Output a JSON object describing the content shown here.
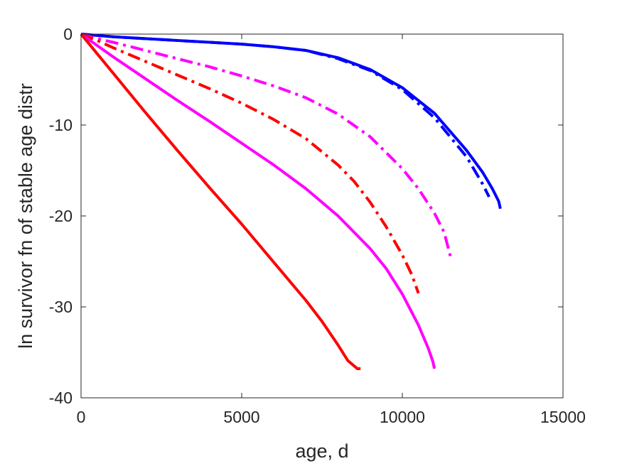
{
  "chart_data": {
    "type": "line",
    "title": "",
    "xlabel": "age, d",
    "ylabel": "ln survivor fn of stable age distr",
    "xlim": [
      0,
      15000
    ],
    "ylim": [
      -40,
      0
    ],
    "xticks": [
      0,
      5000,
      10000,
      15000
    ],
    "yticks": [
      0,
      -10,
      -20,
      -30,
      -40
    ],
    "xtick_labels": [
      "0",
      "5000",
      "10000",
      "15000"
    ],
    "ytick_labels": [
      "0",
      "-10",
      "-20",
      "-30",
      "-40"
    ],
    "grid": false,
    "legend": "none",
    "series": [
      {
        "color": "#0000ff",
        "style": "solid",
        "x": [
          0,
          1000,
          2000,
          3000,
          4000,
          5000,
          6000,
          7000,
          8000,
          9000,
          10000,
          11000,
          12000,
          12500,
          12800,
          13000,
          13050
        ],
        "y": [
          0,
          -0.3,
          -0.5,
          -0.7,
          -0.9,
          -1.1,
          -1.4,
          -1.8,
          -2.6,
          -3.9,
          -5.9,
          -8.7,
          -12.8,
          -15.2,
          -17.0,
          -18.4,
          -19.2
        ]
      },
      {
        "color": "#0000ff",
        "style": "dashdot",
        "x": [
          0,
          1000,
          2000,
          3000,
          4000,
          5000,
          6000,
          7000,
          8000,
          9000,
          10000,
          11000,
          12000,
          12500,
          12700
        ],
        "y": [
          0,
          -0.3,
          -0.5,
          -0.7,
          -0.9,
          -1.1,
          -1.4,
          -1.8,
          -2.7,
          -4.0,
          -6.1,
          -9.2,
          -13.5,
          -16.5,
          -17.9
        ]
      },
      {
        "color": "#ff00ff",
        "style": "dashdot",
        "x": [
          0,
          500,
          1000,
          2000,
          3000,
          4000,
          5000,
          6000,
          7000,
          8000,
          9000,
          10000,
          10500,
          11000,
          11300,
          11500
        ],
        "y": [
          0,
          -0.5,
          -0.9,
          -1.8,
          -2.7,
          -3.6,
          -4.6,
          -5.7,
          -7.0,
          -8.8,
          -11.3,
          -14.8,
          -17.0,
          -19.7,
          -21.8,
          -24.5
        ]
      },
      {
        "color": "#ff0000",
        "style": "dashdot",
        "x": [
          0,
          500,
          1000,
          2000,
          3000,
          4000,
          5000,
          6000,
          7000,
          8000,
          8500,
          9000,
          9500,
          10000,
          10300,
          10500
        ],
        "y": [
          0,
          -0.7,
          -1.5,
          -3.0,
          -4.5,
          -6.0,
          -7.6,
          -9.4,
          -11.5,
          -14.4,
          -16.2,
          -18.5,
          -21.2,
          -24.3,
          -26.5,
          -28.5
        ]
      },
      {
        "color": "#ff00ff",
        "style": "solid",
        "x": [
          0,
          1000,
          2000,
          3000,
          4000,
          5000,
          6000,
          7000,
          8000,
          9000,
          9500,
          10000,
          10500,
          10800,
          10950,
          11000
        ],
        "y": [
          0,
          -2.5,
          -4.9,
          -7.3,
          -9.6,
          -12.0,
          -14.4,
          -17.0,
          -20.0,
          -23.6,
          -25.8,
          -28.6,
          -32.0,
          -34.5,
          -36.0,
          -36.8
        ]
      },
      {
        "color": "#ff0000",
        "style": "solid",
        "x": [
          0,
          1000,
          2000,
          3000,
          4000,
          5000,
          6000,
          7000,
          7500,
          8000,
          8300,
          8500,
          8600,
          8700
        ],
        "y": [
          0,
          -4.3,
          -8.6,
          -12.8,
          -16.9,
          -20.9,
          -25.1,
          -29.3,
          -31.6,
          -34.2,
          -35.9,
          -36.5,
          -36.8,
          -36.8
        ]
      }
    ]
  }
}
